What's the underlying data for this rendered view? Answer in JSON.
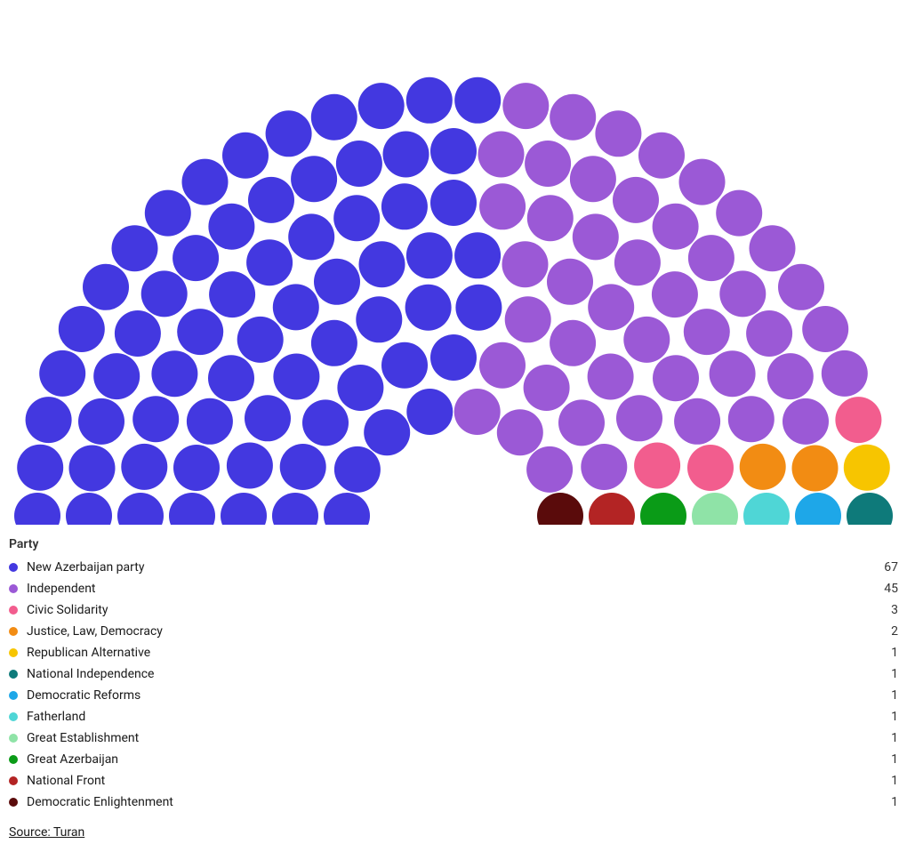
{
  "chart": {
    "type": "parliament",
    "total_seats": 125,
    "rows": 7,
    "svg_viewbox": "0 0 1000 590",
    "inner_ratio": 0.33,
    "seat_radius": 26,
    "seat_gap": 6,
    "background_color": "#ffffff"
  },
  "parties": [
    {
      "id": "nap",
      "name": "New Azerbaijan party",
      "color": "#4338e0",
      "seats": 67
    },
    {
      "id": "ind",
      "name": "Independent",
      "color": "#9b59d6",
      "seats": 45
    },
    {
      "id": "civic",
      "name": "Civic Solidarity",
      "color": "#f25d8e",
      "seats": 3
    },
    {
      "id": "jld",
      "name": "Justice, Law, Democracy",
      "color": "#f28c13",
      "seats": 2
    },
    {
      "id": "repalt",
      "name": "Republican Alternative",
      "color": "#f7c500",
      "seats": 1
    },
    {
      "id": "natind",
      "name": "National Independence",
      "color": "#0e7a7a",
      "seats": 1
    },
    {
      "id": "demref",
      "name": "Democratic Reforms",
      "color": "#1ea7e8",
      "seats": 1
    },
    {
      "id": "father",
      "name": "Fatherland",
      "color": "#4fd6d6",
      "seats": 1
    },
    {
      "id": "great_est",
      "name": "Great Establishment",
      "color": "#8fe3a7",
      "seats": 1
    },
    {
      "id": "great_az",
      "name": "Great Azerbaijan",
      "color": "#0a9b17",
      "seats": 1
    },
    {
      "id": "natfront",
      "name": "National Front",
      "color": "#b32424",
      "seats": 1
    },
    {
      "id": "dement",
      "name": "Democratic Enlightenment",
      "color": "#5a0b0b",
      "seats": 1
    }
  ],
  "legend": {
    "title": "Party"
  },
  "source": {
    "label": "Source: Turan"
  }
}
